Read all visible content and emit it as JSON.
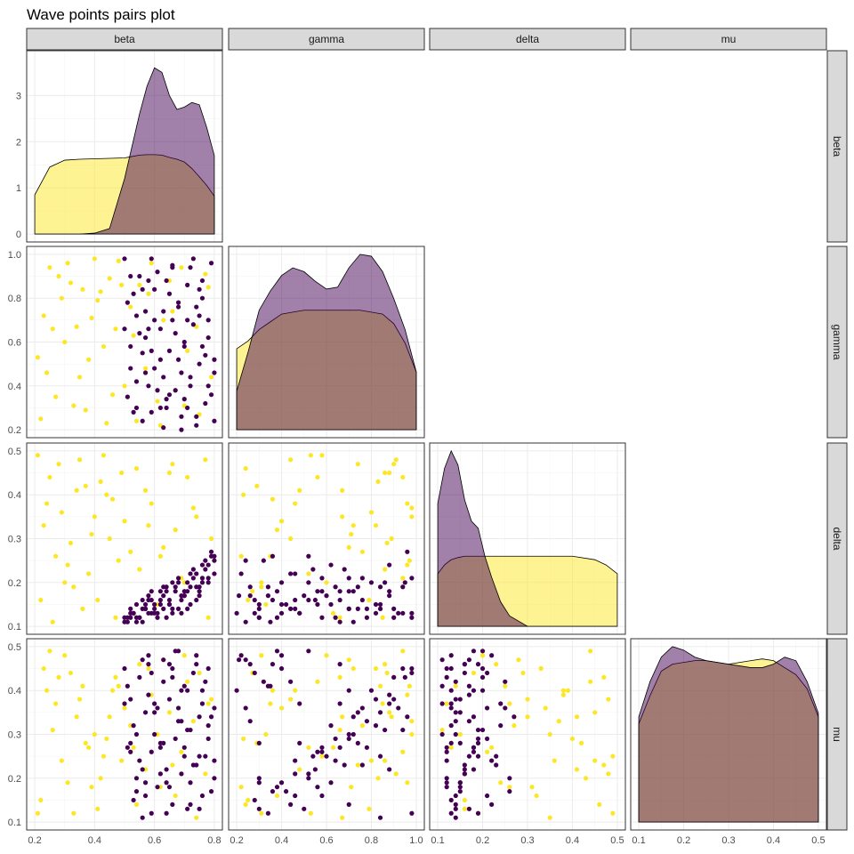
{
  "title": "Wave points pairs plot",
  "colors": {
    "series_a": "#FDE725",
    "series_b": "#440154"
  },
  "chart_data": {
    "type": "scatter",
    "variables": [
      "beta",
      "gamma",
      "delta",
      "mu"
    ],
    "ranges": {
      "beta": [
        0.2,
        0.8
      ],
      "gamma": [
        0.2,
        1.0
      ],
      "delta": [
        0.1,
        0.5
      ],
      "mu": [
        0.1,
        0.5
      ]
    },
    "ticks": {
      "beta": {
        "x": [
          0.2,
          0.4,
          0.6,
          0.8
        ],
        "x_labels": [
          "0.2",
          "0.4",
          "0.6",
          "0.8"
        ],
        "density_y": [
          0,
          1,
          2,
          3
        ],
        "density_y_labels": [
          "0",
          "1",
          "2",
          "3"
        ]
      },
      "gamma": {
        "x": [
          0.2,
          0.4,
          0.6,
          0.8,
          1.0
        ],
        "x_labels": [
          "0.2",
          "0.4",
          "0.6",
          "0.8",
          "1.0"
        ],
        "y": [
          0.2,
          0.4,
          0.6,
          0.8,
          1.0
        ],
        "y_labels": [
          "0.2",
          "0.4",
          "0.6",
          "0.8",
          "1.0"
        ]
      },
      "delta": {
        "x": [
          0.1,
          0.2,
          0.3,
          0.4,
          0.5
        ],
        "x_labels": [
          "0.1",
          "0.2",
          "0.3",
          "0.4",
          "0.5"
        ],
        "y": [
          0.1,
          0.2,
          0.3,
          0.4,
          0.5
        ],
        "y_labels": [
          "0.1",
          "0.2",
          "0.3",
          "0.4",
          "0.5"
        ]
      },
      "mu": {
        "x": [
          0.1,
          0.2,
          0.3,
          0.4,
          0.5
        ],
        "x_labels": [
          "0.1",
          "0.2",
          "0.3",
          "0.4",
          "0.5"
        ],
        "y": [
          0.1,
          0.2,
          0.3,
          0.4,
          0.5
        ],
        "y_labels": [
          "0.1",
          "0.2",
          "0.3",
          "0.4",
          "0.5"
        ]
      }
    },
    "beta_density_ylim": [
      0,
      3.8
    ],
    "densities": {
      "beta": {
        "x": [
          0.2,
          0.25,
          0.3,
          0.35,
          0.4,
          0.45,
          0.5,
          0.525,
          0.55,
          0.575,
          0.6,
          0.625,
          0.65,
          0.675,
          0.7,
          0.725,
          0.75,
          0.775,
          0.8
        ],
        "series_a": [
          0.85,
          1.45,
          1.6,
          1.62,
          1.63,
          1.64,
          1.65,
          1.68,
          1.71,
          1.72,
          1.72,
          1.71,
          1.66,
          1.62,
          1.56,
          1.42,
          1.24,
          1.05,
          0.82
        ],
        "series_b": [
          0.0,
          0.0,
          0.0,
          0.0,
          0.02,
          0.12,
          1.2,
          1.9,
          2.6,
          3.2,
          3.6,
          3.5,
          3.0,
          2.7,
          2.75,
          2.85,
          2.8,
          2.3,
          1.7
        ]
      },
      "gamma": {
        "x": [
          0.2,
          0.25,
          0.3,
          0.35,
          0.4,
          0.45,
          0.5,
          0.55,
          0.6,
          0.65,
          0.7,
          0.75,
          0.8,
          0.85,
          0.9,
          0.95,
          1.0
        ],
        "series_a": [
          0.42,
          0.46,
          0.52,
          0.56,
          0.6,
          0.61,
          0.62,
          0.62,
          0.62,
          0.62,
          0.62,
          0.62,
          0.61,
          0.6,
          0.55,
          0.45,
          0.3
        ],
        "series_b": [
          0.2,
          0.4,
          0.62,
          0.72,
          0.8,
          0.84,
          0.82,
          0.77,
          0.73,
          0.74,
          0.84,
          0.91,
          0.9,
          0.82,
          0.68,
          0.52,
          0.3
        ]
      },
      "delta": {
        "x": [
          0.1,
          0.115,
          0.13,
          0.145,
          0.16,
          0.175,
          0.19,
          0.205,
          0.22,
          0.24,
          0.26,
          0.3,
          0.35,
          0.4,
          0.45,
          0.475,
          0.5
        ],
        "series_a": [
          0.15,
          0.175,
          0.19,
          0.196,
          0.2,
          0.2,
          0.2,
          0.2,
          0.2,
          0.2,
          0.2,
          0.2,
          0.2,
          0.2,
          0.19,
          0.175,
          0.15
        ],
        "series_b": [
          0.35,
          0.45,
          0.5,
          0.46,
          0.36,
          0.3,
          0.28,
          0.2,
          0.14,
          0.07,
          0.03,
          0.0,
          0.0,
          0.0,
          0.0,
          0.0,
          0.0
        ]
      },
      "mu": {
        "x": [
          0.1,
          0.125,
          0.15,
          0.175,
          0.2,
          0.225,
          0.25,
          0.275,
          0.3,
          0.325,
          0.35,
          0.375,
          0.4,
          0.425,
          0.45,
          0.475,
          0.5
        ],
        "series_a": [
          0.28,
          0.36,
          0.43,
          0.45,
          0.455,
          0.46,
          0.46,
          0.455,
          0.45,
          0.455,
          0.46,
          0.465,
          0.46,
          0.44,
          0.42,
          0.38,
          0.3
        ],
        "series_b": [
          0.3,
          0.4,
          0.47,
          0.5,
          0.49,
          0.47,
          0.46,
          0.455,
          0.45,
          0.445,
          0.44,
          0.44,
          0.45,
          0.47,
          0.46,
          0.4,
          0.31
        ]
      }
    },
    "points": {
      "series_a": [
        [
          0.25,
          0.94,
          0.44,
          0.49
        ],
        [
          0.23,
          0.72,
          0.33,
          0.45
        ],
        [
          0.28,
          0.9,
          0.47,
          0.43
        ],
        [
          0.24,
          0.46,
          0.38,
          0.4
        ],
        [
          0.32,
          0.87,
          0.29,
          0.44
        ],
        [
          0.3,
          0.6,
          0.2,
          0.48
        ],
        [
          0.27,
          0.35,
          0.26,
          0.37
        ],
        [
          0.36,
          0.84,
          0.14,
          0.41
        ],
        [
          0.35,
          0.44,
          0.48,
          0.38
        ],
        [
          0.4,
          0.98,
          0.35,
          0.3
        ],
        [
          0.38,
          0.52,
          0.22,
          0.27
        ],
        [
          0.42,
          0.83,
          0.43,
          0.2
        ],
        [
          0.45,
          0.89,
          0.3,
          0.34
        ],
        [
          0.44,
          0.23,
          0.4,
          0.29
        ],
        [
          0.47,
          0.66,
          0.12,
          0.43
        ],
        [
          0.22,
          0.25,
          0.16,
          0.15
        ],
        [
          0.29,
          0.8,
          0.36,
          0.24
        ],
        [
          0.33,
          0.31,
          0.19,
          0.12
        ],
        [
          0.39,
          0.71,
          0.31,
          0.18
        ],
        [
          0.43,
          0.58,
          0.49,
          0.25
        ],
        [
          0.48,
          0.97,
          0.25,
          0.41
        ],
        [
          0.5,
          0.4,
          0.34,
          0.36
        ],
        [
          0.52,
          0.76,
          0.27,
          0.32
        ],
        [
          0.54,
          0.24,
          0.46,
          0.14
        ],
        [
          0.55,
          0.86,
          0.23,
          0.46
        ],
        [
          0.57,
          0.48,
          0.41,
          0.22
        ],
        [
          0.59,
          0.96,
          0.38,
          0.39
        ],
        [
          0.61,
          0.33,
          0.15,
          0.3
        ],
        [
          0.63,
          0.7,
          0.28,
          0.47
        ],
        [
          0.65,
          0.88,
          0.45,
          0.35
        ],
        [
          0.67,
          0.38,
          0.32,
          0.16
        ],
        [
          0.69,
          0.94,
          0.21,
          0.26
        ],
        [
          0.71,
          0.56,
          0.44,
          0.42
        ],
        [
          0.73,
          0.98,
          0.37,
          0.33
        ],
        [
          0.75,
          0.27,
          0.18,
          0.44
        ],
        [
          0.77,
          0.91,
          0.48,
          0.21
        ],
        [
          0.79,
          0.44,
          0.3,
          0.38
        ],
        [
          0.26,
          0.66,
          0.11,
          0.31
        ],
        [
          0.31,
          0.96,
          0.24,
          0.19
        ],
        [
          0.37,
          0.29,
          0.42,
          0.28
        ],
        [
          0.41,
          0.79,
          0.16,
          0.13
        ],
        [
          0.46,
          0.36,
          0.39,
          0.4
        ],
        [
          0.53,
          0.63,
          0.13,
          0.27
        ],
        [
          0.58,
          0.82,
          0.33,
          0.45
        ],
        [
          0.62,
          0.22,
          0.26,
          0.18
        ],
        [
          0.66,
          0.74,
          0.47,
          0.23
        ],
        [
          0.7,
          0.31,
          0.2,
          0.48
        ],
        [
          0.74,
          0.67,
          0.35,
          0.11
        ],
        [
          0.78,
          0.85,
          0.12,
          0.37
        ],
        [
          0.21,
          0.53,
          0.49,
          0.12
        ],
        [
          0.34,
          0.67,
          0.41,
          0.34
        ],
        [
          0.49,
          0.86,
          0.45,
          0.24
        ]
      ],
      "series_b": [
        [
          0.5,
          0.98,
          0.12,
          0.45
        ],
        [
          0.52,
          0.9,
          0.14,
          0.38
        ],
        [
          0.54,
          0.72,
          0.11,
          0.3
        ],
        [
          0.56,
          0.55,
          0.16,
          0.22
        ],
        [
          0.58,
          0.4,
          0.13,
          0.48
        ],
        [
          0.6,
          0.84,
          0.15,
          0.35
        ],
        [
          0.62,
          0.66,
          0.18,
          0.27
        ],
        [
          0.64,
          0.3,
          0.12,
          0.19
        ],
        [
          0.66,
          0.95,
          0.2,
          0.43
        ],
        [
          0.68,
          0.78,
          0.14,
          0.33
        ],
        [
          0.7,
          0.6,
          0.17,
          0.25
        ],
        [
          0.72,
          0.44,
          0.22,
          0.14
        ],
        [
          0.74,
          0.26,
          0.19,
          0.46
        ],
        [
          0.76,
          0.88,
          0.24,
          0.37
        ],
        [
          0.78,
          0.7,
          0.21,
          0.29
        ],
        [
          0.8,
          0.52,
          0.26,
          0.2
        ],
        [
          0.51,
          0.35,
          0.11,
          0.41
        ],
        [
          0.53,
          0.82,
          0.13,
          0.32
        ],
        [
          0.55,
          0.64,
          0.12,
          0.24
        ],
        [
          0.57,
          0.46,
          0.14,
          0.16
        ],
        [
          0.59,
          0.28,
          0.16,
          0.44
        ],
        [
          0.61,
          0.92,
          0.13,
          0.36
        ],
        [
          0.63,
          0.74,
          0.19,
          0.28
        ],
        [
          0.65,
          0.56,
          0.15,
          0.18
        ],
        [
          0.67,
          0.38,
          0.18,
          0.49
        ],
        [
          0.69,
          0.2,
          0.13,
          0.4
        ],
        [
          0.71,
          0.86,
          0.2,
          0.31
        ],
        [
          0.73,
          0.68,
          0.23,
          0.23
        ],
        [
          0.75,
          0.5,
          0.17,
          0.13
        ],
        [
          0.77,
          0.32,
          0.25,
          0.42
        ],
        [
          0.79,
          0.96,
          0.27,
          0.34
        ],
        [
          0.52,
          0.58,
          0.12,
          0.26
        ],
        [
          0.54,
          0.42,
          0.15,
          0.17
        ],
        [
          0.56,
          0.24,
          0.11,
          0.47
        ],
        [
          0.58,
          0.88,
          0.17,
          0.39
        ],
        [
          0.6,
          0.7,
          0.14,
          0.3
        ],
        [
          0.62,
          0.52,
          0.16,
          0.21
        ],
        [
          0.64,
          0.34,
          0.19,
          0.12
        ],
        [
          0.66,
          0.94,
          0.13,
          0.45
        ],
        [
          0.68,
          0.76,
          0.21,
          0.36
        ],
        [
          0.7,
          0.58,
          0.18,
          0.27
        ],
        [
          0.72,
          0.4,
          0.15,
          0.19
        ],
        [
          0.74,
          0.22,
          0.22,
          0.48
        ],
        [
          0.76,
          0.8,
          0.2,
          0.4
        ],
        [
          0.78,
          0.62,
          0.24,
          0.32
        ],
        [
          0.8,
          0.46,
          0.22,
          0.24
        ],
        [
          0.53,
          0.28,
          0.13,
          0.15
        ],
        [
          0.55,
          0.9,
          0.12,
          0.43
        ],
        [
          0.57,
          0.74,
          0.14,
          0.35
        ],
        [
          0.59,
          0.56,
          0.18,
          0.26
        ],
        [
          0.61,
          0.38,
          0.12,
          0.18
        ],
        [
          0.63,
          0.21,
          0.17,
          0.47
        ],
        [
          0.65,
          0.82,
          0.15,
          0.38
        ],
        [
          0.67,
          0.64,
          0.19,
          0.29
        ],
        [
          0.69,
          0.46,
          0.16,
          0.21
        ],
        [
          0.71,
          0.3,
          0.14,
          0.13
        ],
        [
          0.73,
          0.98,
          0.21,
          0.44
        ],
        [
          0.75,
          0.72,
          0.18,
          0.34
        ],
        [
          0.77,
          0.54,
          0.23,
          0.25
        ],
        [
          0.79,
          0.36,
          0.26,
          0.17
        ],
        [
          0.5,
          0.66,
          0.11,
          0.37
        ],
        [
          0.52,
          0.48,
          0.13,
          0.28
        ],
        [
          0.54,
          0.3,
          0.12,
          0.2
        ],
        [
          0.56,
          0.84,
          0.14,
          0.11
        ],
        [
          0.58,
          0.66,
          0.16,
          0.46
        ],
        [
          0.6,
          0.48,
          0.13,
          0.37
        ],
        [
          0.62,
          0.3,
          0.15,
          0.28
        ],
        [
          0.64,
          0.88,
          0.18,
          0.22
        ],
        [
          0.66,
          0.7,
          0.14,
          0.14
        ],
        [
          0.68,
          0.52,
          0.2,
          0.49
        ],
        [
          0.7,
          0.34,
          0.17,
          0.41
        ],
        [
          0.72,
          0.94,
          0.19,
          0.31
        ],
        [
          0.74,
          0.76,
          0.16,
          0.23
        ],
        [
          0.76,
          0.58,
          0.21,
          0.16
        ],
        [
          0.78,
          0.4,
          0.2,
          0.45
        ],
        [
          0.8,
          0.24,
          0.25,
          0.36
        ],
        [
          0.51,
          0.78,
          0.12,
          0.27
        ],
        [
          0.57,
          0.62,
          0.15,
          0.19
        ],
        [
          0.63,
          0.44,
          0.14,
          0.42
        ],
        [
          0.69,
          0.26,
          0.17,
          0.33
        ],
        [
          0.75,
          0.84,
          0.19,
          0.25
        ],
        [
          0.59,
          0.98,
          0.13,
          0.12
        ],
        [
          0.65,
          0.36,
          0.16,
          0.46
        ],
        [
          0.71,
          0.7,
          0.18,
          0.4
        ]
      ]
    }
  }
}
